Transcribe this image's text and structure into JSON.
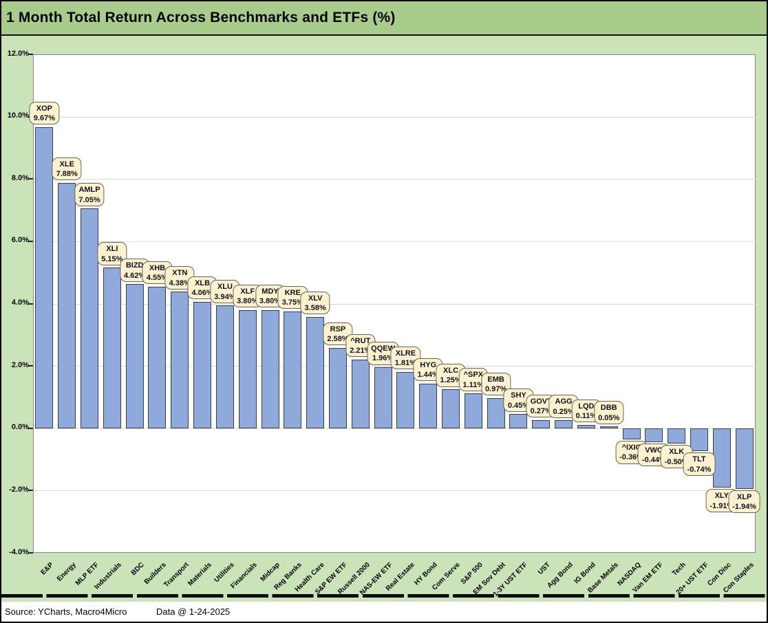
{
  "title": "1 Month Total Return Across Benchmarks and ETFs (%)",
  "footer": {
    "source": "Source: YCharts, Macro4Micro",
    "data_date": "Data @ 1-24-2025"
  },
  "colors": {
    "title_bg": "#a8cc8b",
    "chart_bg": "#cbe3b8",
    "plot_bg": "#ffffff",
    "plot_border": "#858585",
    "gridline": "#dadada",
    "bar_fill": "#8fa9db",
    "bar_border": "#3d3d3d",
    "callout_bg": "#fdf2cf",
    "callout_border": "#64645a"
  },
  "chart_data": {
    "type": "bar",
    "title": "1 Month Total Return Across Benchmarks and ETFs (%)",
    "xlabel": "",
    "ylabel": "",
    "ylim": [
      -4,
      12
    ],
    "grid": true,
    "legend": "none",
    "ytick_values": [
      12,
      10,
      8,
      6,
      4,
      2,
      0,
      -2,
      -4
    ],
    "ytick_labels": [
      "12.0%",
      "10.0%",
      "8.0%",
      "6.0%",
      "4.0%",
      "2.0%",
      "0.0%",
      "-2.0%",
      "-4.0%"
    ],
    "categories": [
      "E&P",
      "Energy",
      "MLP ETF",
      "Industrials",
      "BDC",
      "Builders",
      "Transport",
      "Materials",
      "Utilities",
      "Financials",
      "Midcap",
      "Reg Banks",
      "Health Care",
      "S&P EW ETF",
      "Russell 2000",
      "NAS-EW ETF",
      "Real Estate",
      "HY Bond",
      "Com Serve",
      "S&P 500",
      "EM Sov Debt",
      "1-3Y UST ETF",
      "UST",
      "Agg Bond",
      "IG Bond",
      "Base Metals",
      "NASDAQ",
      "Van EM ETF",
      "Tech",
      "20+ UST ETF",
      "Con Disc",
      "Con Staples"
    ],
    "tickers": [
      "XOP",
      "XLE",
      "AMLP",
      "XLI",
      "BIZD",
      "XHB",
      "XTN",
      "XLB",
      "XLU",
      "XLF",
      "MDY",
      "KRE",
      "XLV",
      "RSP",
      "^RUT",
      "QQEW",
      "XLRE",
      "HYG",
      "XLC",
      "^SPX",
      "EMB",
      "SHY",
      "GOVT",
      "AGG",
      "LQD",
      "DBB",
      "^IXIC",
      "VWO",
      "XLK",
      "TLT",
      "XLY",
      "XLP"
    ],
    "series": [
      {
        "name": "1 Month Total Return %",
        "values": [
          9.67,
          7.88,
          7.05,
          5.15,
          4.62,
          4.55,
          4.38,
          4.06,
          3.94,
          3.8,
          3.8,
          3.75,
          3.58,
          2.58,
          2.21,
          1.96,
          1.81,
          1.44,
          1.25,
          1.11,
          0.97,
          0.45,
          0.27,
          0.25,
          0.11,
          0.05,
          -0.36,
          -0.44,
          -0.5,
          -0.74,
          -1.91,
          -1.94
        ]
      }
    ],
    "value_labels": [
      "9.67%",
      "7.88%",
      "7.05%",
      "5.15%",
      "4.62%",
      "4.55%",
      "4.38%",
      "4.06%",
      "3.94%",
      "3.80%",
      "3.80%",
      "3.75%",
      "3.58%",
      "2.58%",
      "2.21%",
      "1.96%",
      "1.81%",
      "1.44%",
      "1.25%",
      "1.11%",
      "0.97%",
      "0.45%",
      "0.27%",
      "0.25%",
      "0.11%",
      "0.05%",
      "-0.36%",
      "-0.44%",
      "-0.50%",
      "-0.74%",
      "-1.91%",
      "-1.94%"
    ]
  }
}
